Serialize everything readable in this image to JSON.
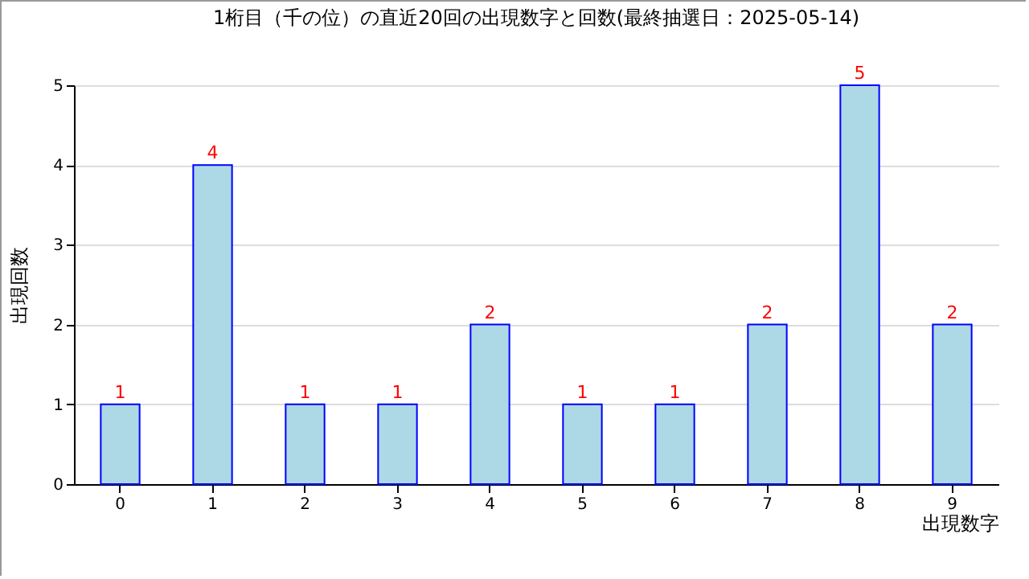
{
  "chart_data": {
    "type": "bar",
    "title": "1桁目（千の位）の直近20回の出現数字と回数(最終抽選日：2025-05-14)",
    "xlabel": "出現数字",
    "ylabel": "出現回数",
    "categories": [
      "0",
      "1",
      "2",
      "3",
      "4",
      "5",
      "6",
      "7",
      "8",
      "9"
    ],
    "values": [
      1,
      4,
      1,
      1,
      2,
      1,
      1,
      2,
      5,
      2
    ],
    "color": "#add8e6",
    "ylim": [
      0,
      5
    ],
    "yticks": [
      0,
      1,
      2,
      3,
      4,
      5
    ],
    "grid": "y",
    "data_labels": true
  }
}
